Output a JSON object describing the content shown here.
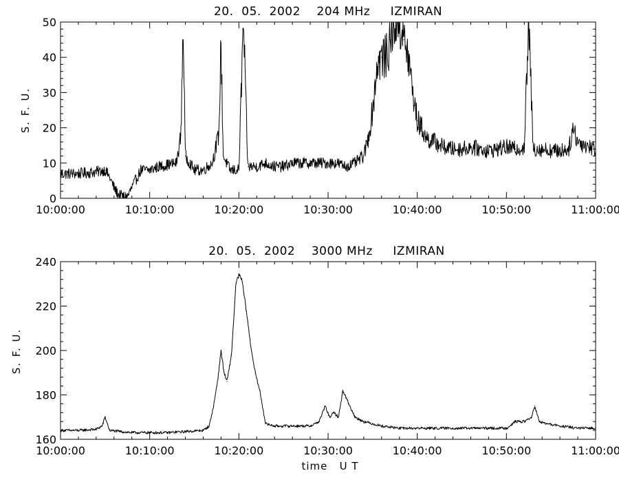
{
  "chart_data": [
    {
      "type": "line",
      "title": "20.  05.  2002    204 MHz     IZMIRAN",
      "ylabel": "S. F. U.",
      "xlabel": "",
      "x_range": [
        "10:00:00",
        "11:00:00"
      ],
      "ylim": [
        0,
        50
      ],
      "y_ticks": [
        0,
        10,
        20,
        30,
        40,
        50
      ],
      "x_tick_labels": [
        "10:00:00",
        "10:10:00",
        "10:20:00",
        "10:30:00",
        "10:40:00",
        "10:50:00",
        "11:00:00"
      ],
      "grid": false,
      "series": [
        {
          "color": "#000000",
          "x": [
            "10:00:00",
            "10:02:00",
            "10:04:00",
            "10:05:00",
            "10:05:30",
            "10:06:00",
            "10:06:30",
            "10:07:00",
            "10:07:30",
            "10:08:00",
            "10:09:00",
            "10:10:00",
            "10:11:00",
            "10:12:00",
            "10:13:00",
            "10:13:30",
            "10:13:45",
            "10:14:00",
            "10:15:00",
            "10:16:00",
            "10:17:00",
            "10:17:45",
            "10:18:00",
            "10:18:15",
            "10:19:00",
            "10:20:00",
            "10:20:30",
            "10:21:00",
            "10:22:00",
            "10:23:00",
            "10:24:00",
            "10:25:00",
            "10:26:00",
            "10:27:00",
            "10:28:00",
            "10:29:00",
            "10:30:00",
            "10:31:00",
            "10:32:00",
            "10:33:00",
            "10:34:00",
            "10:34:30",
            "10:35:00",
            "10:35:30",
            "10:36:00",
            "10:36:30",
            "10:37:00",
            "10:37:30",
            "10:38:00",
            "10:38:30",
            "10:39:00",
            "10:39:30",
            "10:40:00",
            "10:40:30",
            "10:41:00",
            "10:42:00",
            "10:43:00",
            "10:44:00",
            "10:45:00",
            "10:46:00",
            "10:47:00",
            "10:48:00",
            "10:49:00",
            "10:50:00",
            "10:51:00",
            "10:52:00",
            "10:52:30",
            "10:53:00",
            "10:54:00",
            "10:55:00",
            "10:56:00",
            "10:57:00",
            "10:57:30",
            "10:58:00",
            "10:59:00",
            "11:00:00"
          ],
          "values": [
            7,
            7,
            7.5,
            8,
            6,
            3,
            1,
            0.5,
            0.5,
            3,
            8,
            8,
            9,
            9.5,
            10,
            18,
            50,
            12,
            8,
            8,
            10,
            18,
            44,
            12,
            8,
            8,
            50,
            9,
            9,
            10,
            9,
            9,
            10,
            10,
            10,
            10,
            10,
            10,
            9,
            10,
            12,
            17,
            25,
            38,
            40,
            40,
            45,
            50,
            50,
            45,
            40,
            30,
            22,
            20,
            17,
            16,
            14.5,
            14,
            14,
            14.5,
            14,
            13.5,
            14,
            14.5,
            14,
            14.5,
            50,
            14,
            14,
            13.5,
            13.5,
            14,
            20,
            16,
            15,
            14
          ]
        }
      ]
    },
    {
      "type": "line",
      "title": "20.  05.  2002    3000 MHz     IZMIRAN",
      "ylabel": "S. F. U.",
      "xlabel": "time   U T",
      "x_range": [
        "10:00:00",
        "11:00:00"
      ],
      "ylim": [
        160,
        240
      ],
      "y_ticks": [
        160,
        180,
        200,
        220,
        240
      ],
      "x_tick_labels": [
        "10:00:00",
        "10:10:00",
        "10:20:00",
        "10:30:00",
        "10:40:00",
        "10:50:00",
        "11:00:00"
      ],
      "grid": false,
      "series": [
        {
          "color": "#000000",
          "x": [
            "10:00:00",
            "10:02:00",
            "10:04:00",
            "10:04:40",
            "10:05:00",
            "10:05:30",
            "10:08:00",
            "10:10:00",
            "10:12:00",
            "10:14:00",
            "10:16:00",
            "10:16:40",
            "10:17:10",
            "10:17:40",
            "10:18:00",
            "10:18:20",
            "10:18:40",
            "10:19:10",
            "10:19:40",
            "10:20:00",
            "10:20:20",
            "10:20:50",
            "10:21:20",
            "10:21:50",
            "10:22:20",
            "10:23:00",
            "10:24:00",
            "10:26:00",
            "10:28:00",
            "10:29:00",
            "10:29:40",
            "10:30:10",
            "10:30:40",
            "10:31:10",
            "10:31:40",
            "10:32:20",
            "10:33:00",
            "10:34:00",
            "10:36:00",
            "10:38:00",
            "10:40:00",
            "10:42:00",
            "10:44:00",
            "10:46:00",
            "10:48:00",
            "10:50:00",
            "10:51:00",
            "10:52:00",
            "10:52:50",
            "10:53:10",
            "10:53:40",
            "10:54:30",
            "10:56:00",
            "10:58:00",
            "11:00:00"
          ],
          "values": [
            164,
            164,
            164.5,
            166,
            170,
            164,
            163,
            163,
            163,
            163.5,
            164,
            166,
            175,
            188,
            200,
            190,
            186,
            198,
            230,
            234,
            232,
            218,
            202,
            190,
            182,
            167,
            166,
            166,
            166,
            168,
            175,
            170,
            172,
            170,
            182,
            176,
            170,
            168,
            166,
            165,
            165,
            165,
            165,
            165,
            165,
            165,
            168,
            168,
            170,
            175,
            168,
            167,
            166,
            165,
            165
          ]
        }
      ]
    }
  ]
}
